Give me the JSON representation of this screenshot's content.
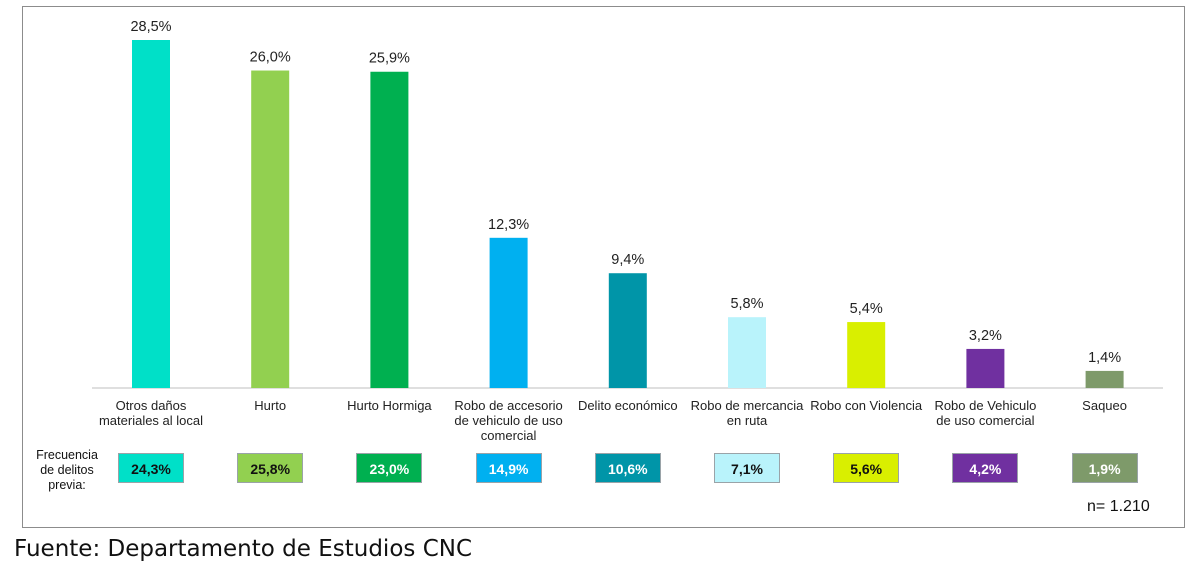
{
  "chart_data": {
    "type": "bar",
    "categories": [
      "Otros daños materiales al local",
      "Hurto",
      "Hurto Hormiga",
      "Robo de accesorio de vehiculo de uso comercial",
      "Delito económico",
      "Robo de mercancia en ruta",
      "Robo con Violencia",
      "Robo de Vehiculo de uso comercial",
      "Saqueo"
    ],
    "category_lines": [
      [
        "Otros daños",
        "materiales al local"
      ],
      [
        "Hurto"
      ],
      [
        "Hurto Hormiga"
      ],
      [
        "Robo de accesorio",
        "de vehiculo de uso",
        "comercial"
      ],
      [
        "Delito económico"
      ],
      [
        "Robo de mercancia",
        "en ruta"
      ],
      [
        "Robo con Violencia"
      ],
      [
        "Robo de Vehiculo",
        "de uso comercial"
      ],
      [
        "Saqueo"
      ]
    ],
    "values": [
      28.5,
      26.0,
      25.9,
      12.3,
      9.4,
      5.8,
      5.4,
      3.2,
      1.4
    ],
    "value_labels": [
      "28,5%",
      "26,0%",
      "25,9%",
      "12,3%",
      "9,4%",
      "5,8%",
      "5,4%",
      "3,2%",
      "1,4%"
    ],
    "colors": [
      "#00e0c8",
      "#92d050",
      "#00b050",
      "#00b0f0",
      "#0095a8",
      "#b9f3fb",
      "#d9ef00",
      "#7030a0",
      "#7e9a6a"
    ],
    "ylim": [
      0,
      30
    ],
    "grid": false,
    "legend": "none"
  },
  "previous_frequency": {
    "label_lines": [
      "Frecuencia",
      "de delitos",
      "previa:"
    ],
    "values": [
      "24,3%",
      "25,8%",
      "23,0%",
      "14,9%",
      "10,6%",
      "7,1%",
      "5,6%",
      "4,2%",
      "1,9%"
    ],
    "text_colors": [
      "#111111",
      "#111111",
      "#ffffff",
      "#ffffff",
      "#ffffff",
      "#111111",
      "#111111",
      "#ffffff",
      "#ffffff"
    ]
  },
  "sample_size": "n= 1.210",
  "source": "Fuente: Departamento de Estudios CNC"
}
